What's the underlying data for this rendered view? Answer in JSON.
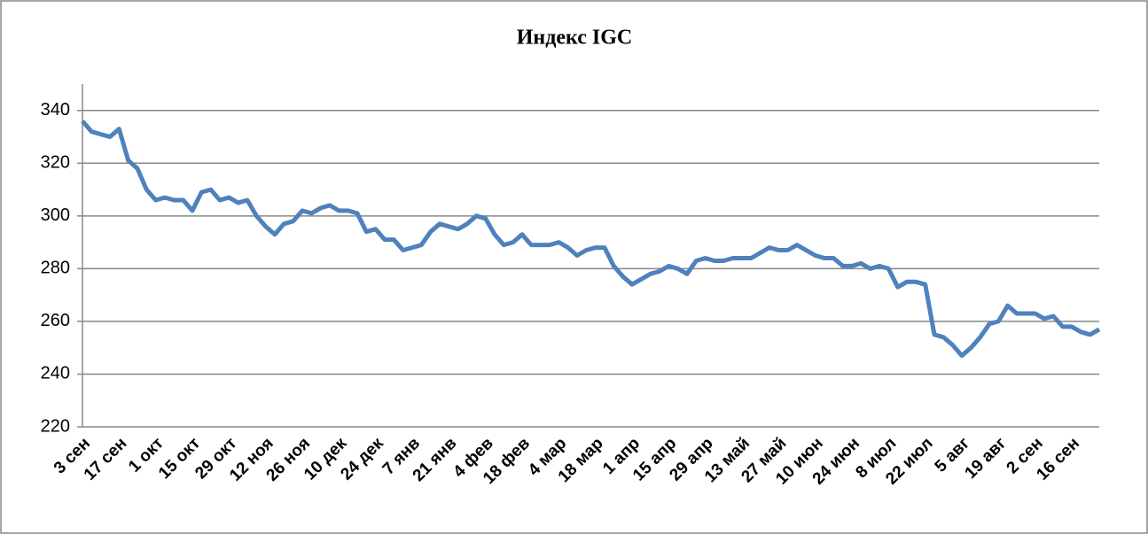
{
  "chart_data": {
    "type": "line",
    "title": "Индекс IGC",
    "categories": [
      "3 сен",
      null,
      null,
      null,
      "17 сен",
      null,
      null,
      null,
      "1 окт",
      null,
      null,
      null,
      "15 окт",
      null,
      null,
      null,
      "29 окт",
      null,
      null,
      null,
      "12 ноя",
      null,
      null,
      null,
      "26 ноя",
      null,
      null,
      null,
      "10 дек",
      null,
      null,
      null,
      "24 дек",
      null,
      null,
      null,
      "7 янв",
      null,
      null,
      null,
      "21 янв",
      null,
      null,
      null,
      "4 фев",
      null,
      null,
      null,
      "18 фев",
      null,
      null,
      null,
      "4 мар",
      null,
      null,
      null,
      "18 мар",
      null,
      null,
      null,
      "1 апр",
      null,
      null,
      null,
      "15 апр",
      null,
      null,
      null,
      "29 апр",
      null,
      null,
      null,
      "13 май",
      null,
      null,
      null,
      "27 май",
      null,
      null,
      null,
      "10 июн",
      null,
      null,
      null,
      "24 июн",
      null,
      null,
      null,
      "8 июл",
      null,
      null,
      null,
      "22 июл",
      null,
      null,
      null,
      "5 авг",
      null,
      null,
      null,
      "19 авг",
      null,
      null,
      null,
      "2 сен",
      null,
      null,
      null,
      "16 сен",
      null,
      null,
      null
    ],
    "values": [
      336,
      332,
      331,
      330,
      333,
      321,
      318,
      310,
      306,
      307,
      306,
      306,
      302,
      309,
      310,
      306,
      307,
      305,
      306,
      300,
      296,
      293,
      297,
      298,
      302,
      301,
      303,
      304,
      302,
      302,
      301,
      294,
      295,
      291,
      291,
      287,
      288,
      289,
      294,
      297,
      296,
      295,
      297,
      300,
      299,
      293,
      289,
      290,
      293,
      289,
      289,
      289,
      290,
      288,
      285,
      287,
      288,
      288,
      281,
      277,
      274,
      276,
      278,
      279,
      281,
      280,
      278,
      283,
      284,
      283,
      283,
      284,
      284,
      284,
      286,
      288,
      287,
      287,
      289,
      287,
      285,
      284,
      284,
      281,
      281,
      282,
      280,
      281,
      280,
      273,
      275,
      275,
      274,
      255,
      254,
      251,
      247,
      250,
      254,
      259,
      260,
      266,
      263,
      263,
      263,
      261,
      262,
      258,
      258,
      256,
      255,
      257
    ],
    "color": "#4f81bd",
    "ylim": [
      220,
      350
    ],
    "yticks": [
      220,
      240,
      260,
      280,
      300,
      320,
      340
    ],
    "grid": true
  }
}
